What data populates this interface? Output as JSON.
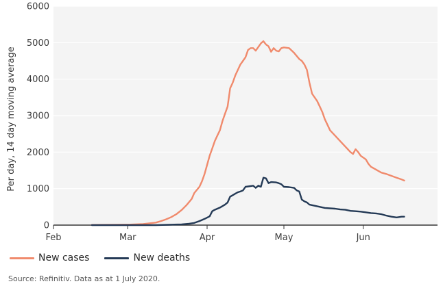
{
  "chart_data": {
    "type": "line",
    "ylabel": "Per day, 14 day moving average",
    "ylim": [
      0,
      6000
    ],
    "yticks": [
      0,
      1000,
      2000,
      3000,
      4000,
      5000,
      6000
    ],
    "x_ticks": [
      {
        "label": "Feb",
        "day": 0
      },
      {
        "label": "Mar",
        "day": 29
      },
      {
        "label": "Apr",
        "day": 60
      },
      {
        "label": "May",
        "day": 90
      },
      {
        "label": "Jun",
        "day": 121
      }
    ],
    "x_range_days": [
      0,
      150
    ],
    "grid": "horizontal",
    "legend_position": "bottom-left",
    "series": [
      {
        "name": "New cases",
        "color": "#f08a6c",
        "points": [
          [
            15,
            5
          ],
          [
            25,
            10
          ],
          [
            30,
            15
          ],
          [
            35,
            30
          ],
          [
            40,
            70
          ],
          [
            42,
            110
          ],
          [
            44,
            160
          ],
          [
            46,
            220
          ],
          [
            48,
            300
          ],
          [
            50,
            410
          ],
          [
            52,
            550
          ],
          [
            54,
            720
          ],
          [
            55,
            880
          ],
          [
            57,
            1050
          ],
          [
            58,
            1200
          ],
          [
            59,
            1400
          ],
          [
            60,
            1650
          ],
          [
            61,
            1900
          ],
          [
            62,
            2100
          ],
          [
            63,
            2300
          ],
          [
            64,
            2450
          ],
          [
            65,
            2600
          ],
          [
            66,
            2850
          ],
          [
            67,
            3050
          ],
          [
            68,
            3250
          ],
          [
            69,
            3750
          ],
          [
            70,
            3900
          ],
          [
            71,
            4100
          ],
          [
            72,
            4250
          ],
          [
            73,
            4400
          ],
          [
            74,
            4500
          ],
          [
            75,
            4600
          ],
          [
            76,
            4800
          ],
          [
            77,
            4850
          ],
          [
            78,
            4850
          ],
          [
            79,
            4780
          ],
          [
            80,
            4880
          ],
          [
            81,
            4980
          ],
          [
            82,
            5040
          ],
          [
            83,
            4950
          ],
          [
            84,
            4900
          ],
          [
            85,
            4750
          ],
          [
            86,
            4850
          ],
          [
            87,
            4780
          ],
          [
            88,
            4760
          ],
          [
            89,
            4850
          ],
          [
            90,
            4870
          ],
          [
            92,
            4850
          ],
          [
            94,
            4720
          ],
          [
            96,
            4550
          ],
          [
            97,
            4500
          ],
          [
            98,
            4400
          ],
          [
            99,
            4250
          ],
          [
            100,
            3900
          ],
          [
            101,
            3600
          ],
          [
            102,
            3500
          ],
          [
            103,
            3400
          ],
          [
            104,
            3250
          ],
          [
            105,
            3100
          ],
          [
            106,
            2900
          ],
          [
            107,
            2750
          ],
          [
            108,
            2600
          ],
          [
            110,
            2450
          ],
          [
            112,
            2300
          ],
          [
            114,
            2150
          ],
          [
            116,
            2000
          ],
          [
            117,
            1950
          ],
          [
            118,
            2080
          ],
          [
            119,
            2000
          ],
          [
            120,
            1900
          ],
          [
            121,
            1850
          ],
          [
            122,
            1800
          ],
          [
            123,
            1680
          ],
          [
            124,
            1600
          ],
          [
            126,
            1520
          ],
          [
            128,
            1440
          ],
          [
            130,
            1400
          ],
          [
            132,
            1350
          ],
          [
            134,
            1300
          ],
          [
            136,
            1250
          ],
          [
            137,
            1220
          ]
        ]
      },
      {
        "name": "New deaths",
        "color": "#243a56",
        "points": [
          [
            15,
            0
          ],
          [
            40,
            0
          ],
          [
            45,
            10
          ],
          [
            50,
            20
          ],
          [
            53,
            40
          ],
          [
            55,
            60
          ],
          [
            57,
            110
          ],
          [
            59,
            170
          ],
          [
            61,
            240
          ],
          [
            62,
            380
          ],
          [
            63,
            420
          ],
          [
            65,
            480
          ],
          [
            67,
            560
          ],
          [
            68,
            620
          ],
          [
            69,
            780
          ],
          [
            70,
            820
          ],
          [
            71,
            860
          ],
          [
            72,
            900
          ],
          [
            73,
            920
          ],
          [
            74,
            950
          ],
          [
            75,
            1050
          ],
          [
            76,
            1060
          ],
          [
            78,
            1080
          ],
          [
            79,
            1020
          ],
          [
            80,
            1080
          ],
          [
            81,
            1050
          ],
          [
            82,
            1300
          ],
          [
            83,
            1280
          ],
          [
            84,
            1150
          ],
          [
            85,
            1180
          ],
          [
            87,
            1170
          ],
          [
            88,
            1150
          ],
          [
            89,
            1120
          ],
          [
            90,
            1050
          ],
          [
            92,
            1040
          ],
          [
            94,
            1020
          ],
          [
            95,
            950
          ],
          [
            96,
            920
          ],
          [
            97,
            700
          ],
          [
            98,
            650
          ],
          [
            99,
            620
          ],
          [
            100,
            560
          ],
          [
            102,
            530
          ],
          [
            104,
            500
          ],
          [
            106,
            470
          ],
          [
            108,
            460
          ],
          [
            110,
            450
          ],
          [
            112,
            430
          ],
          [
            114,
            420
          ],
          [
            116,
            390
          ],
          [
            118,
            380
          ],
          [
            120,
            370
          ],
          [
            122,
            350
          ],
          [
            124,
            330
          ],
          [
            126,
            320
          ],
          [
            128,
            300
          ],
          [
            130,
            260
          ],
          [
            132,
            230
          ],
          [
            134,
            210
          ],
          [
            136,
            230
          ],
          [
            137,
            230
          ]
        ]
      }
    ]
  },
  "source": "Source: Refinitiv. Data as at 1 July 2020."
}
